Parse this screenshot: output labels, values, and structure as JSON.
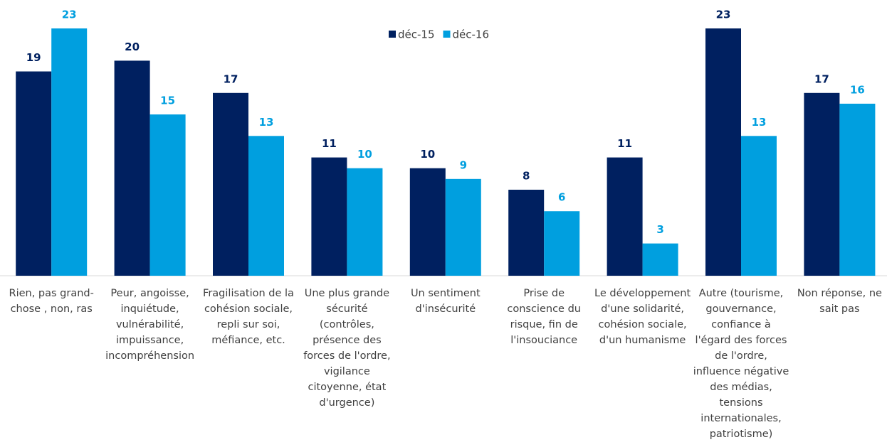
{
  "chart_data": {
    "type": "bar",
    "categories": [
      "Rien, pas grand-chose , non, ras",
      "Peur, angoisse, inquiétude, vulnérabilité, impuissance, incompréhension",
      "Fragilisation de la cohésion sociale, repli sur soi, méfiance, etc.",
      "Une plus grande sécurité (contrôles, présence des forces de l'ordre, vigilance citoyenne, état d'urgence)",
      "Un sentiment d'insécurité",
      "Prise de conscience du risque, fin de l'insouciance",
      "Le développement d'une solidarité, cohésion sociale, d'un humanisme",
      "Autre (tourisme, gouvernance, confiance à l'égard des forces de l'ordre, influence négative des médias, tensions internationales, patriotisme)",
      "Non réponse, ne sait pas"
    ],
    "series": [
      {
        "name": "déc-15",
        "color": "#002060",
        "values": [
          19,
          20,
          17,
          11,
          10,
          8,
          11,
          23,
          17
        ]
      },
      {
        "name": "déc-16",
        "color": "#009fdf",
        "values": [
          23,
          15,
          13,
          10,
          9,
          6,
          3,
          13,
          16
        ]
      }
    ],
    "legend": "top"
  }
}
